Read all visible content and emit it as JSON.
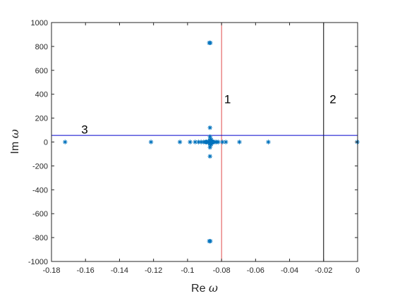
{
  "chart_data": {
    "type": "scatter",
    "title": "",
    "xlabel_parts": {
      "text": "Re ",
      "symbol": "ω"
    },
    "ylabel_parts": {
      "text": "Im ",
      "symbol": "ω"
    },
    "xlim": [
      -0.18,
      0
    ],
    "ylim": [
      -1000,
      1000
    ],
    "x_ticks": [
      -0.18,
      -0.16,
      -0.14,
      -0.12,
      -0.1,
      -0.08,
      -0.06,
      -0.04,
      -0.02,
      0
    ],
    "x_tick_labels": [
      "-0.18",
      "-0.16",
      "-0.14",
      "-0.12",
      "-0.1",
      "-0.08",
      "-0.06",
      "-0.04",
      "-0.02",
      "0"
    ],
    "y_ticks": [
      -1000,
      -800,
      -600,
      -400,
      -200,
      0,
      200,
      400,
      600,
      800,
      1000
    ],
    "y_tick_labels": [
      "-1000",
      "-800",
      "-600",
      "-400",
      "-200",
      "0",
      "200",
      "400",
      "600",
      "800",
      "1000"
    ],
    "grid": false,
    "marker": "asterisk",
    "marker_color": "#0072BD",
    "points": [
      [
        -0.172,
        0
      ],
      [
        -0.1215,
        0
      ],
      [
        -0.1045,
        0
      ],
      [
        -0.0985,
        0
      ],
      [
        -0.0955,
        0
      ],
      [
        -0.0935,
        0
      ],
      [
        -0.092,
        0
      ],
      [
        -0.0905,
        0
      ],
      [
        -0.0895,
        0
      ],
      [
        -0.089,
        0
      ],
      [
        -0.0885,
        0
      ],
      [
        -0.0878,
        0
      ],
      [
        -0.0872,
        0
      ],
      [
        -0.0866,
        0
      ],
      [
        -0.0862,
        0
      ],
      [
        -0.0858,
        0
      ],
      [
        -0.0852,
        0
      ],
      [
        -0.0846,
        0
      ],
      [
        -0.0838,
        0
      ],
      [
        -0.083,
        0
      ],
      [
        -0.082,
        0
      ],
      [
        -0.0795,
        0
      ],
      [
        -0.0775,
        0
      ],
      [
        -0.0695,
        0
      ],
      [
        -0.0525,
        0
      ],
      [
        -0.0002,
        0
      ],
      [
        -0.0872,
        830
      ],
      [
        -0.0866,
        830
      ],
      [
        -0.0872,
        -830
      ],
      [
        -0.0866,
        -830
      ],
      [
        -0.0868,
        120
      ],
      [
        -0.0868,
        -120
      ],
      [
        -0.0868,
        45
      ],
      [
        -0.0868,
        -45
      ],
      [
        -0.0866,
        25
      ],
      [
        -0.0866,
        -25
      ],
      [
        -0.087,
        12
      ],
      [
        -0.087,
        -12
      ],
      [
        -0.0864,
        8
      ],
      [
        -0.0864,
        -8
      ],
      [
        -0.086,
        18
      ],
      [
        -0.086,
        -18
      ]
    ],
    "reference_lines": [
      {
        "orientation": "vertical",
        "value": -0.08,
        "color": "#E0484A"
      },
      {
        "orientation": "vertical",
        "value": -0.02,
        "color": "#000000"
      },
      {
        "orientation": "horizontal",
        "value": 55,
        "color": "#0000CC"
      }
    ],
    "annotations": [
      {
        "text": "1",
        "x": -0.0765,
        "y": 360
      },
      {
        "text": "2",
        "x": -0.0145,
        "y": 360
      },
      {
        "text": "3",
        "x": -0.1605,
        "y": 105
      }
    ]
  }
}
